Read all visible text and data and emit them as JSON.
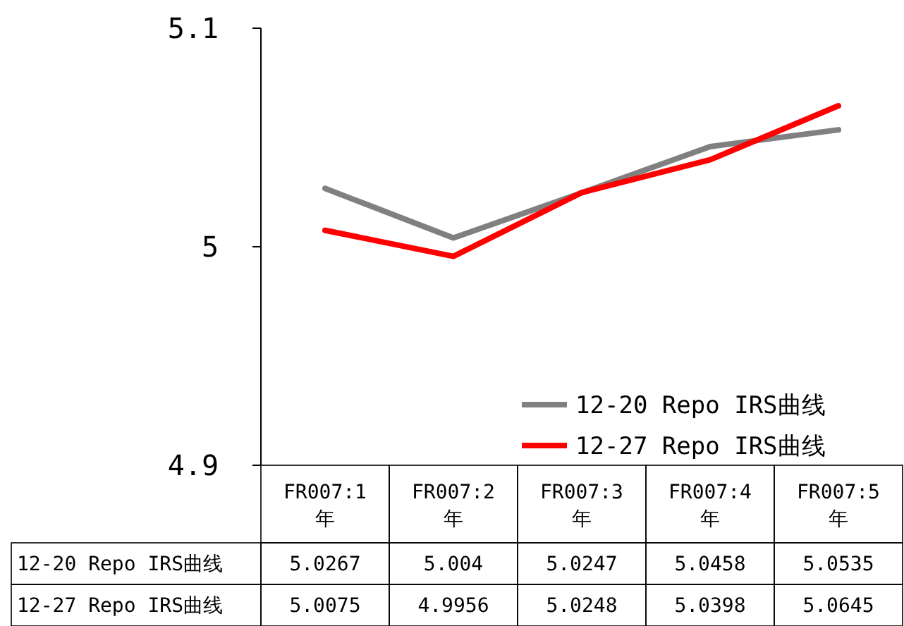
{
  "chart_data": {
    "type": "line",
    "categories": [
      "FR007:1年",
      "FR007:2年",
      "FR007:3年",
      "FR007:4年",
      "FR007:5年"
    ],
    "series": [
      {
        "name": "12-20 Repo IRS曲线",
        "color": "#808080",
        "values": [
          5.0267,
          5.004,
          5.0247,
          5.0458,
          5.0535
        ]
      },
      {
        "name": "12-27 Repo IRS曲线",
        "color": "#ff0000",
        "values": [
          5.0075,
          4.9956,
          5.0248,
          5.0398,
          5.0645
        ]
      }
    ],
    "ylim": [
      4.9,
      5.1
    ],
    "yticks": [
      4.9,
      5,
      5.1
    ],
    "legend": "bottom right",
    "data_labels": true,
    "grid": false,
    "line_style": "solid"
  }
}
